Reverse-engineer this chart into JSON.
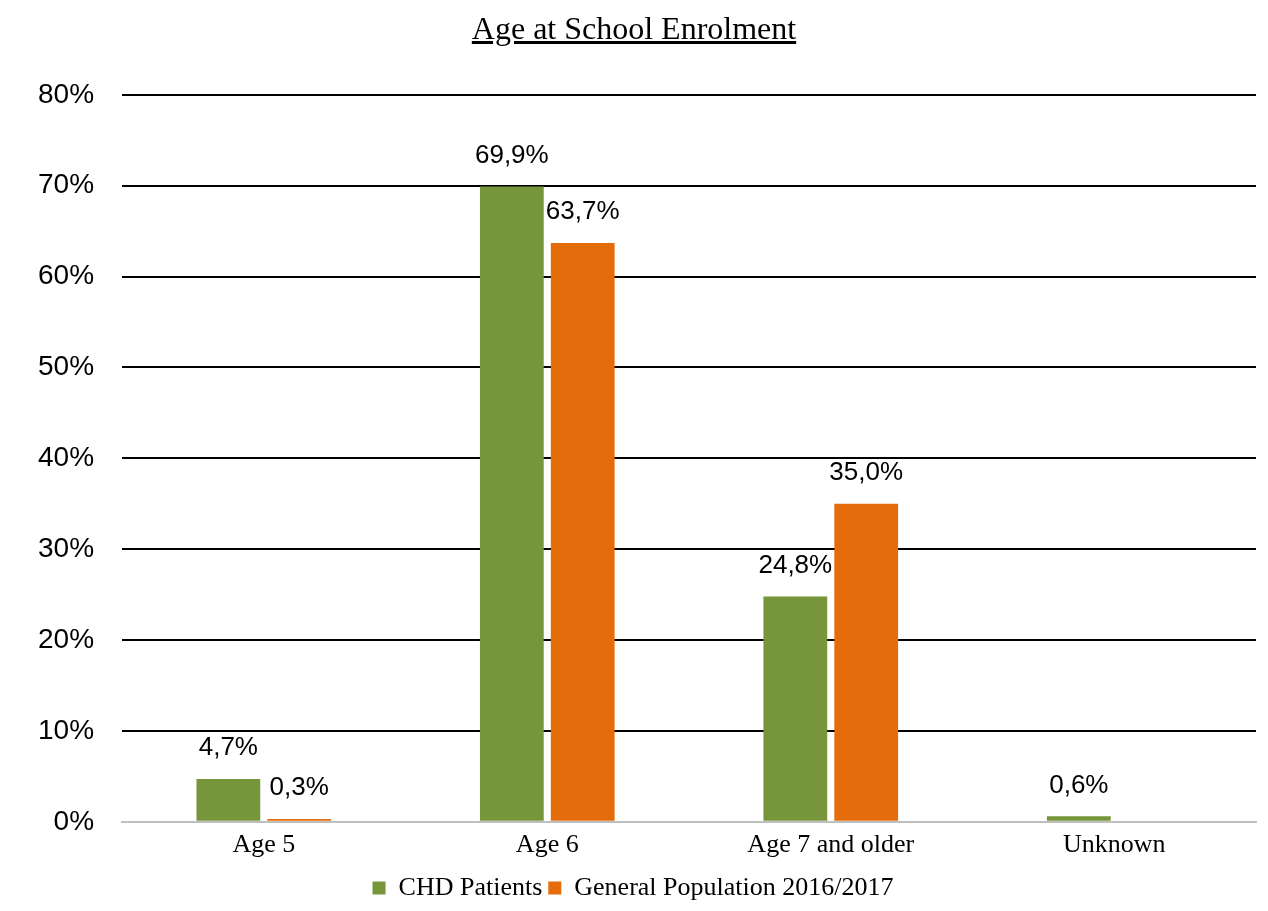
{
  "chart_data": {
    "type": "bar",
    "title": "Age at School Enrolment",
    "categories": [
      "Age 5",
      "Age 6",
      "Age 7 and older",
      "Unknown"
    ],
    "series": [
      {
        "name": "CHD Patients",
        "color": "#77963b",
        "values": [
          4.7,
          69.9,
          24.8,
          0.6
        ],
        "value_labels": [
          "4,7%",
          "69,9%",
          "24,8%",
          "0,6%"
        ]
      },
      {
        "name": "General Population 2016/2017",
        "color": "#e46c0a",
        "values": [
          0.3,
          63.7,
          35.0,
          null
        ],
        "value_labels": [
          "0,3%",
          "63,7%",
          "35,0%",
          null
        ]
      }
    ],
    "ylim": [
      0,
      80
    ],
    "yticks": [
      {
        "value": 0,
        "label": "0%"
      },
      {
        "value": 10,
        "label": "10%"
      },
      {
        "value": 20,
        "label": "20%"
      },
      {
        "value": 30,
        "label": "30%"
      },
      {
        "value": 40,
        "label": "40%"
      },
      {
        "value": 50,
        "label": "50%"
      },
      {
        "value": 60,
        "label": "60%"
      },
      {
        "value": 70,
        "label": "70%"
      },
      {
        "value": 80,
        "label": "80%"
      }
    ],
    "grid": "y",
    "legend": "bottom"
  }
}
